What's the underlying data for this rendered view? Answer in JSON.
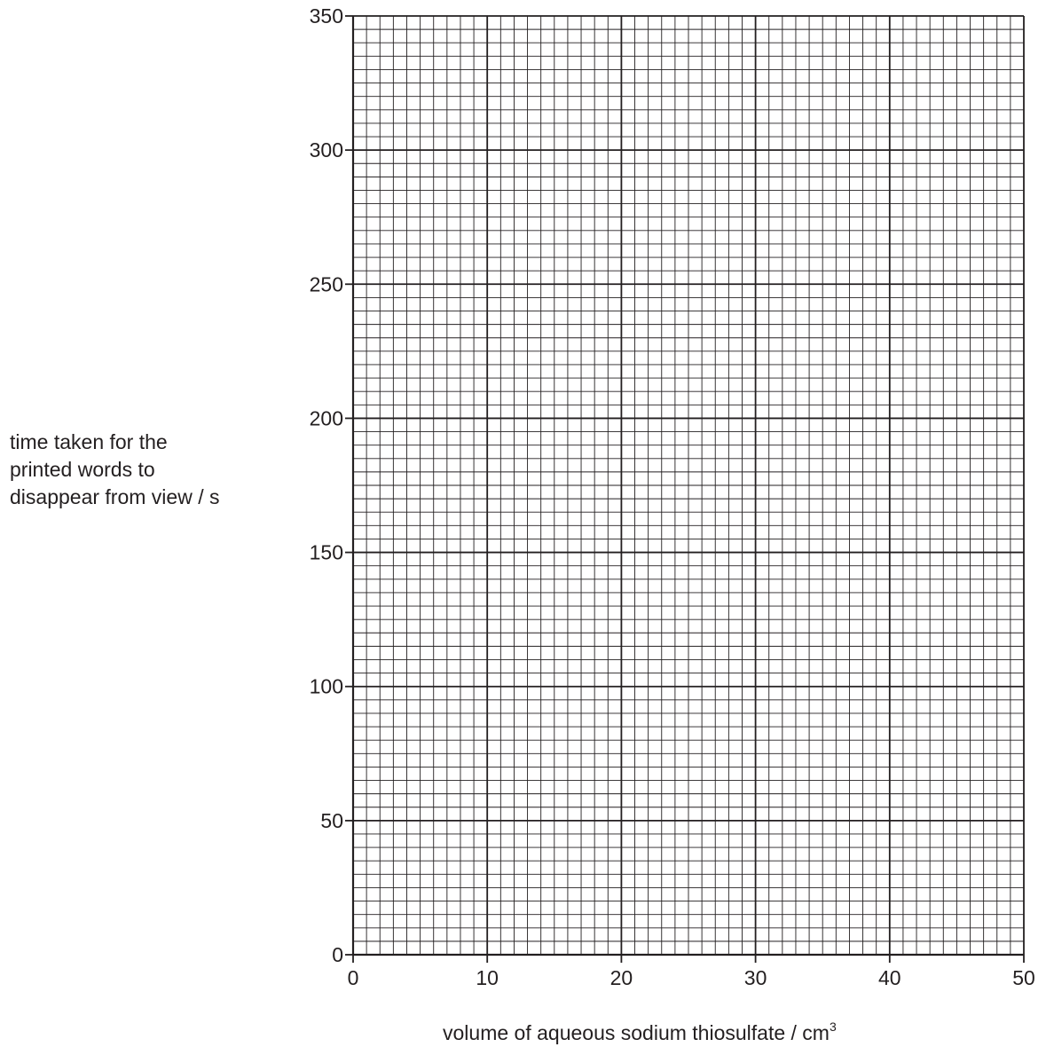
{
  "chart_data": {
    "type": "scatter",
    "title": "",
    "xlabel": "volume of aqueous sodium thiosulfate / cm³",
    "xlabel_parts": {
      "text": "volume of aqueous sodium thiosulfate / cm",
      "superscript": "3"
    },
    "ylabel": "time taken for the printed words to disappear from view / s",
    "ylabel_lines": [
      "time taken for the",
      "printed words to",
      "disappear from view / s"
    ],
    "xlim": [
      0,
      50
    ],
    "ylim": [
      0,
      350
    ],
    "x_ticks": [
      "0",
      "10",
      "20",
      "30",
      "40",
      "50"
    ],
    "y_ticks": [
      "0",
      "50",
      "100",
      "150",
      "200",
      "250",
      "300",
      "350"
    ],
    "x_major_step": 10,
    "y_major_step": 50,
    "x_minor_step": 1,
    "y_minor_step": 5,
    "grid": true,
    "series": []
  },
  "colors": {
    "ink": "#231f20",
    "background": "#ffffff"
  }
}
